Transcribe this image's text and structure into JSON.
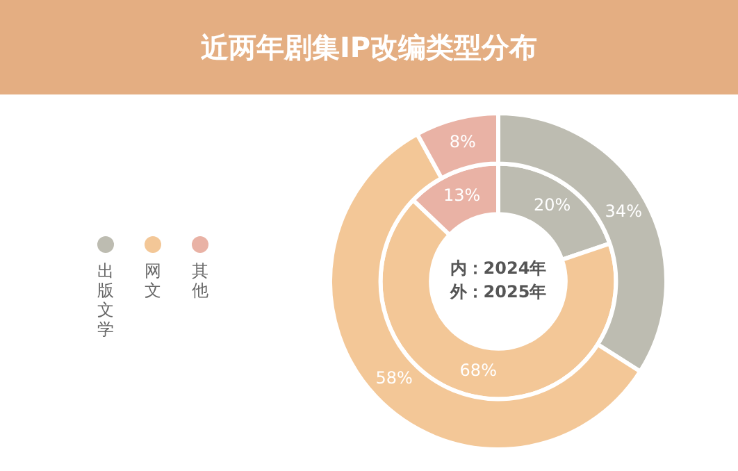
{
  "chart_data": {
    "type": "donut",
    "title": "近两年剧集IP改编类型分布",
    "categories": [
      "出版文学",
      "网文",
      "其他"
    ],
    "series": [
      {
        "values": [
          34,
          58,
          8
        ],
        "colors": [
          "#bdbcb1",
          "#f3c797",
          "#e9b2a5"
        ],
        "value_labels": [
          "34%",
          "58%",
          "8%"
        ]
      },
      {
        "values": [
          20,
          68,
          13
        ],
        "colors": [
          "#bdbcb1",
          "#f3c797",
          "#e9b2a5"
        ],
        "value_labels": [
          "20%",
          "68%",
          "13%"
        ]
      }
    ],
    "legend": "left",
    "annotations": [
      "内：2024年",
      "外：2025年"
    ]
  }
}
